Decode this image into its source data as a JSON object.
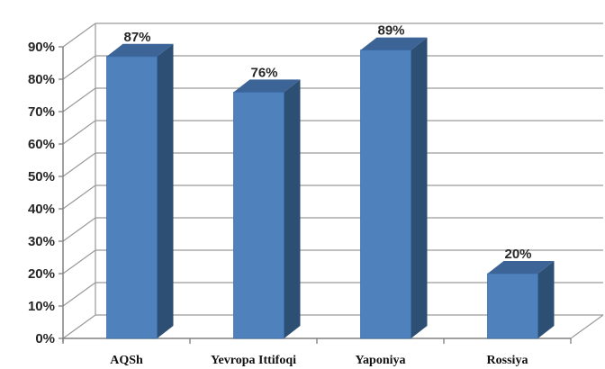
{
  "chart_data": {
    "type": "bar",
    "style": "3d-column",
    "categories": [
      "AQSh",
      "Yevropa Ittifoqi",
      "Yaponiya",
      "Rossiya"
    ],
    "values": [
      87,
      76,
      89,
      20
    ],
    "data_labels": [
      "87%",
      "76%",
      "89%",
      "20%"
    ],
    "y_ticks": [
      "0%",
      "10%",
      "20%",
      "30%",
      "40%",
      "50%",
      "60%",
      "70%",
      "80%",
      "90%"
    ],
    "ylim": [
      0,
      90
    ],
    "grid": true,
    "legend": "none",
    "colors": {
      "front": "#4F81BD",
      "side": "#2E4F74",
      "top": "#3C6496",
      "grid": "#9A9A9A"
    }
  }
}
